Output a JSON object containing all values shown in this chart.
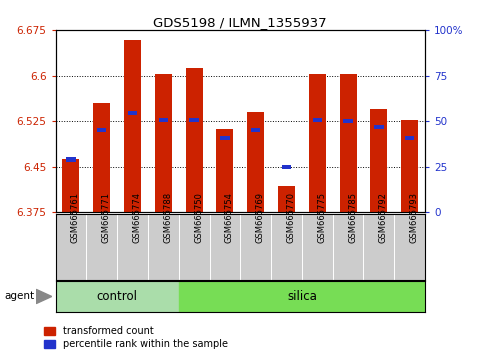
{
  "title": "GDS5198 / ILMN_1355937",
  "samples": [
    "GSM665761",
    "GSM665771",
    "GSM665774",
    "GSM665788",
    "GSM665750",
    "GSM665754",
    "GSM665769",
    "GSM665770",
    "GSM665775",
    "GSM665785",
    "GSM665792",
    "GSM665793"
  ],
  "n_control": 4,
  "n_silica": 8,
  "red_values": [
    6.463,
    6.555,
    6.658,
    6.603,
    6.613,
    6.513,
    6.54,
    6.418,
    6.603,
    6.603,
    6.545,
    6.527
  ],
  "blue_values": [
    6.462,
    6.51,
    6.538,
    6.527,
    6.527,
    6.498,
    6.51,
    6.45,
    6.527,
    6.525,
    6.515,
    6.498
  ],
  "ymin": 6.375,
  "ymax": 6.675,
  "yticks": [
    6.375,
    6.45,
    6.525,
    6.6,
    6.675
  ],
  "ytick_labels": [
    "6.375",
    "6.45",
    "6.525",
    "6.6",
    "6.675"
  ],
  "right_ytick_labels": [
    "0",
    "25",
    "50",
    "75",
    "100%"
  ],
  "bar_color": "#cc2200",
  "blue_color": "#2233cc",
  "control_bg": "#aaddaa",
  "silica_bg": "#77dd55",
  "tick_area_bg": "#cccccc",
  "group_label_control": "control",
  "group_label_silica": "silica",
  "agent_label": "agent",
  "legend_red": "transformed count",
  "legend_blue": "percentile rank within the sample"
}
